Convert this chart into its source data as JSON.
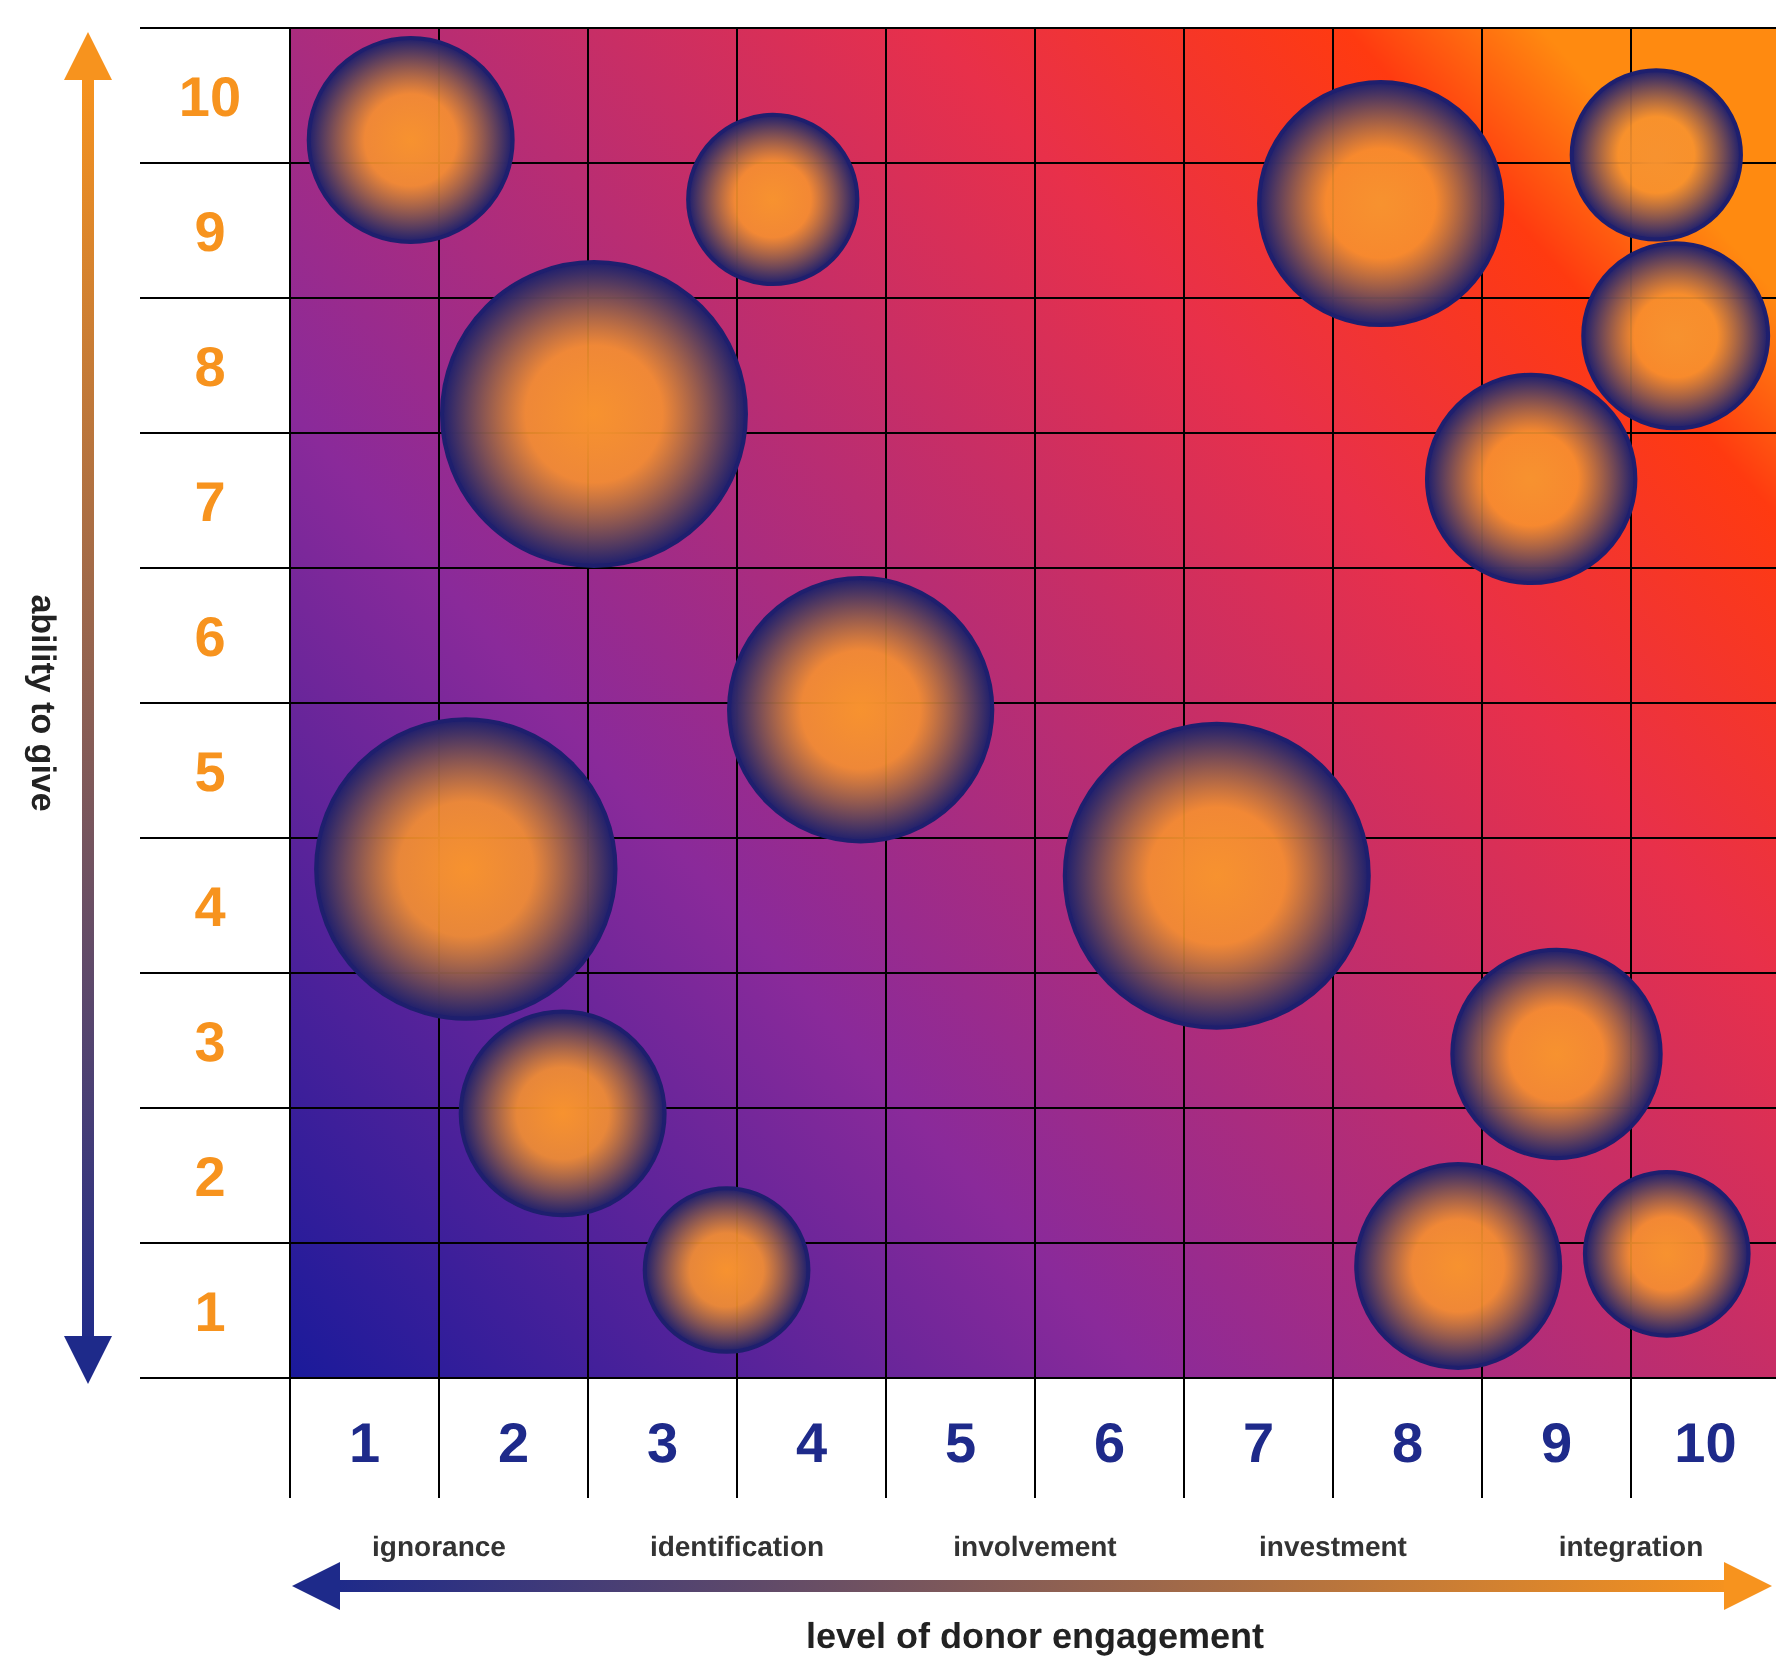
{
  "chart_data": {
    "type": "bubble",
    "xlabel": "level of donor engagement",
    "ylabel": "ability to give",
    "x": [
      1.31,
      3.74,
      2.54,
      7.82,
      9.67,
      9.8,
      8.83,
      4.33,
      1.68,
      6.72,
      9.0,
      2.33,
      3.43,
      8.34,
      9.74
    ],
    "series": [
      {
        "color": "#1e1f6e",
        "values": [
          9.67,
          9.23,
          7.64,
          9.2,
          9.56,
          8.22,
          7.16,
          5.45,
          4.27,
          4.22,
          2.9,
          2.46,
          1.3,
          1.33,
          1.42
        ],
        "sizes": [
          0.45,
          0.31,
          1,
          0.64,
          0.31,
          0.37,
          0.47,
          0.75,
          0.97,
          1,
          0.47,
          0.45,
          0.29,
          0.45,
          0.29
        ]
      }
    ],
    "xlim": [
      0.5,
      10.5
    ],
    "ylim": [
      0.5,
      10.5
    ],
    "xticks": [
      1,
      2,
      3,
      4,
      5,
      6,
      7,
      8,
      9,
      10
    ],
    "yticks": [
      1,
      2,
      3,
      4,
      5,
      6,
      7,
      8,
      9,
      10
    ],
    "grid": true,
    "annotations": [
      "ignorance",
      "identification",
      "involvement",
      "investment",
      "integration"
    ]
  }
}
